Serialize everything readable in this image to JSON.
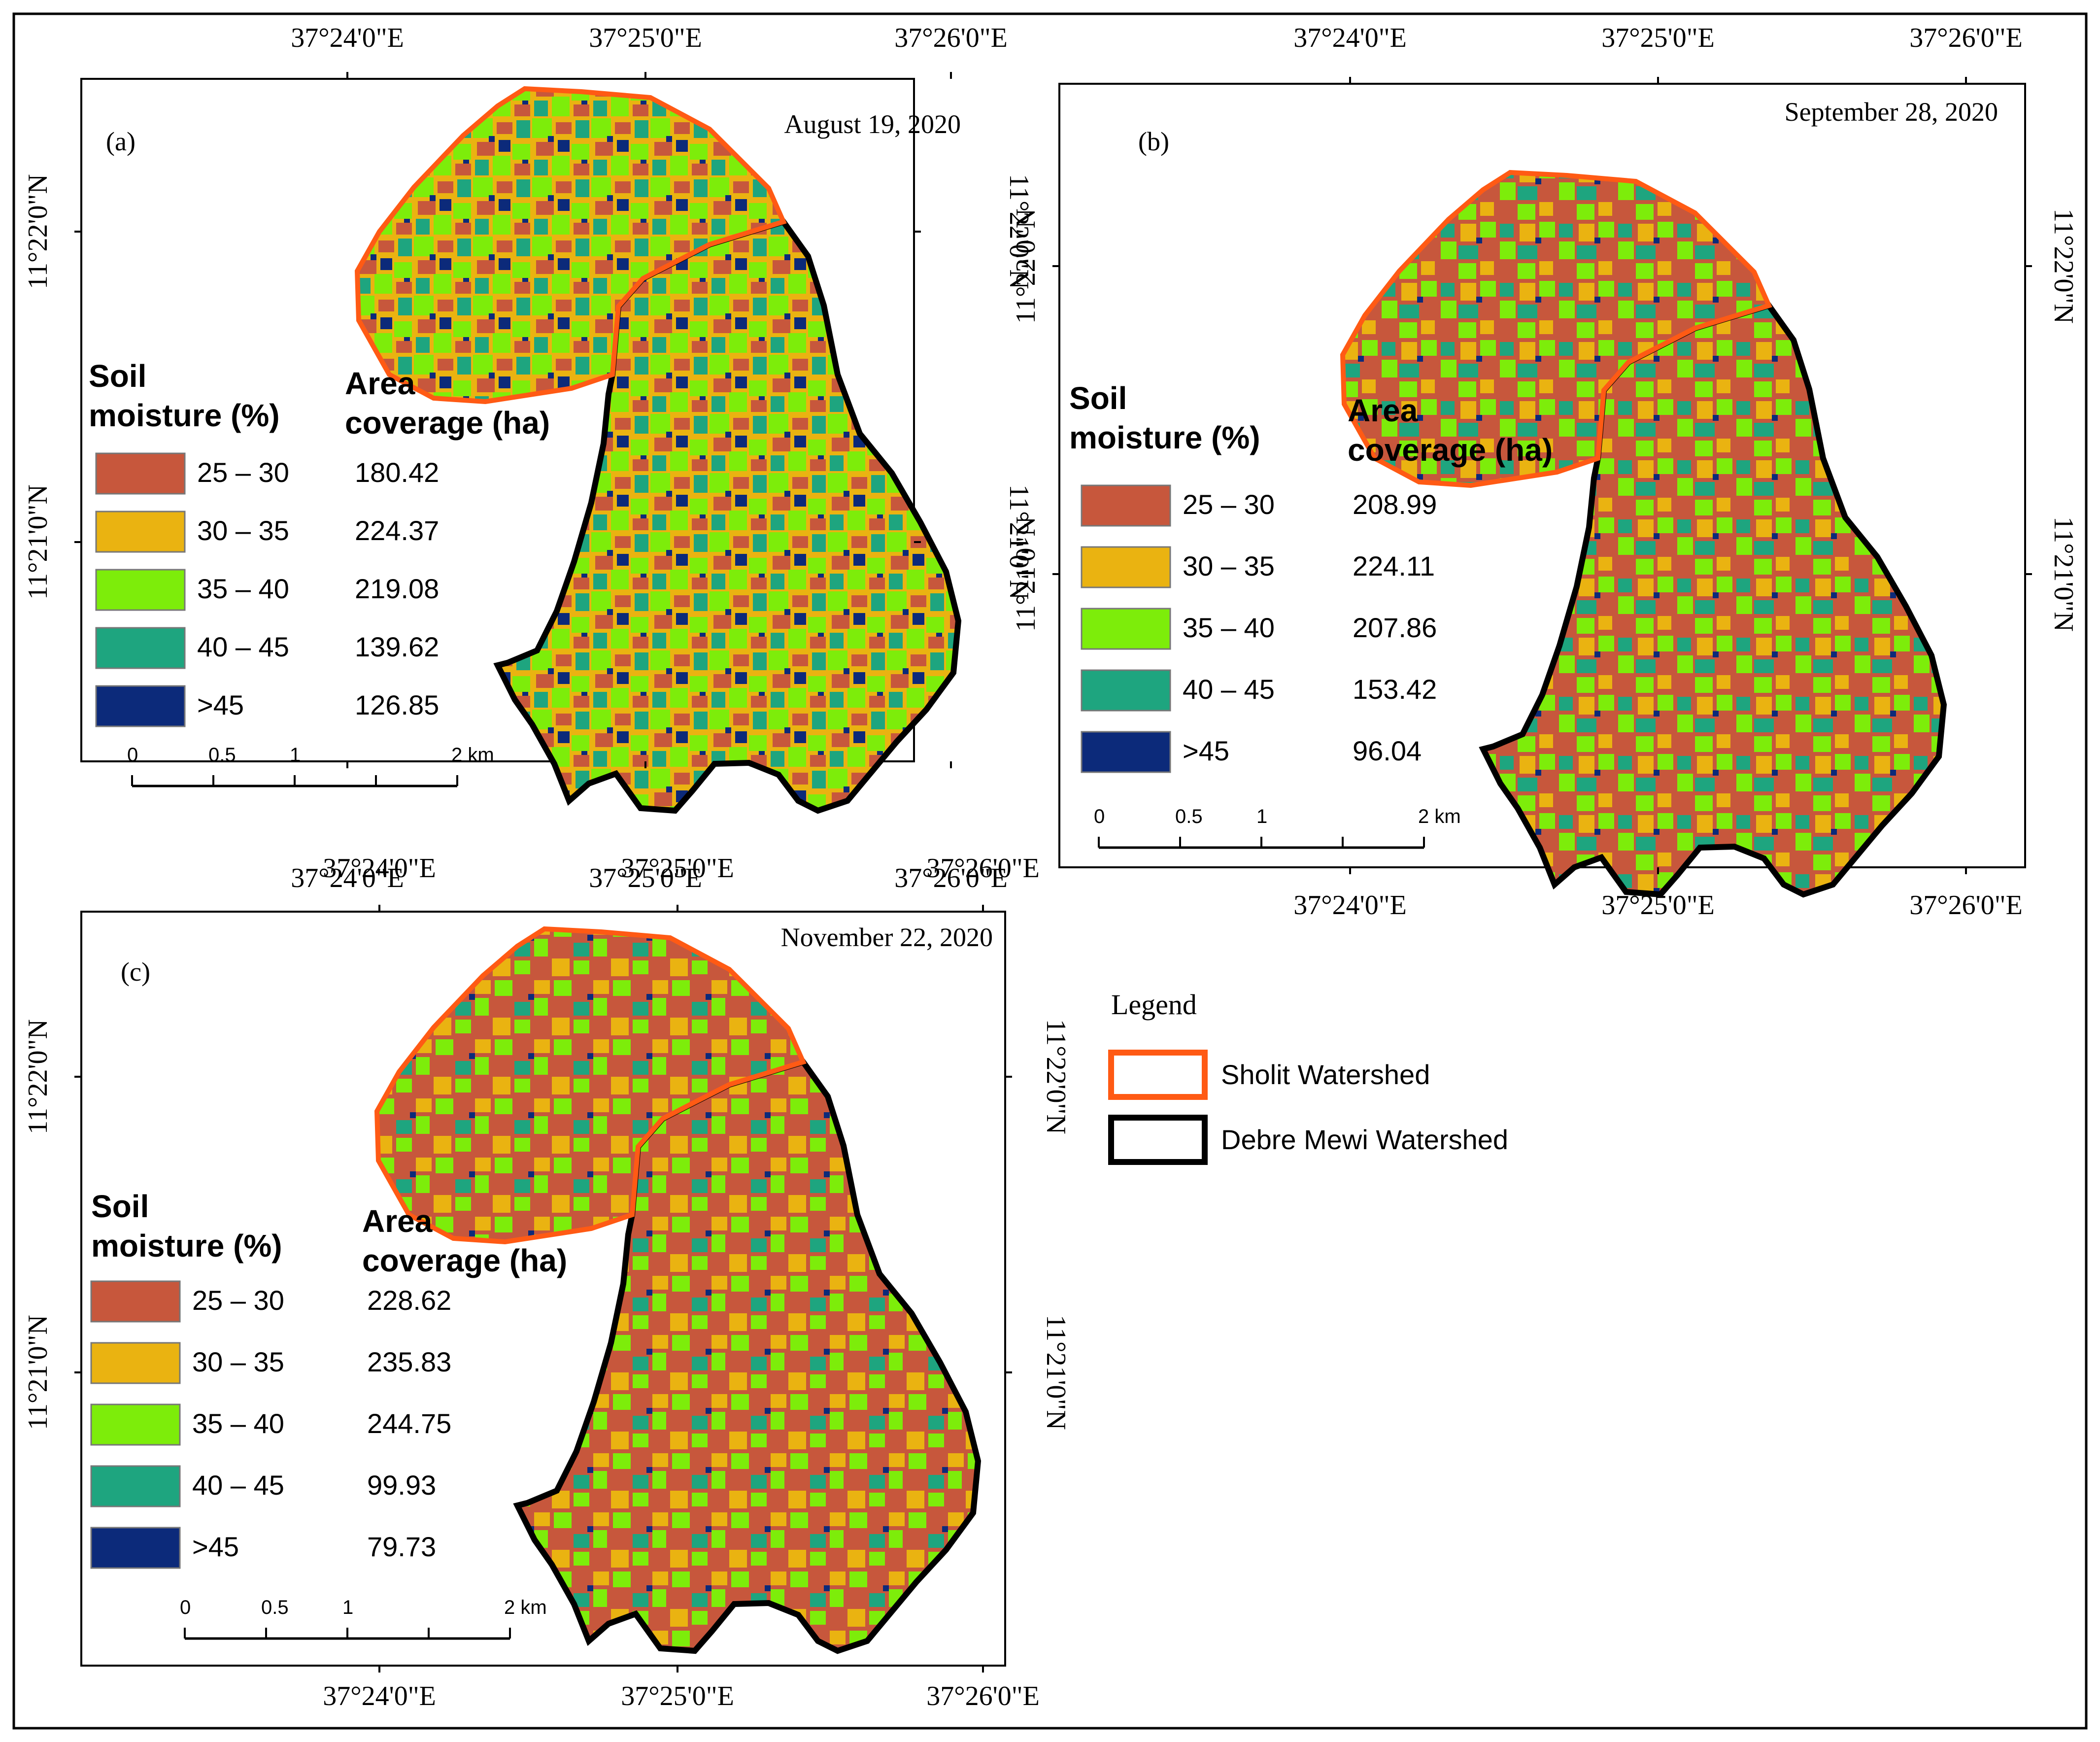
{
  "colors": {
    "class_colors": [
      "#c7573c",
      "#eab311",
      "#7ded0a",
      "#1ea57f",
      "#0c2a7a"
    ],
    "sholit_outline": "#ff5a14",
    "debre_mewi_outline": "#000000"
  },
  "panels": [
    {
      "label": "(a)",
      "date": "August 19, 2020",
      "lon_labels": [
        "37°24'0\"E",
        "37°25'0\"E",
        "37°26'0\"E"
      ],
      "lat_labels": [
        "11°22'0\"N",
        "11°21'0\"N"
      ],
      "legend": {
        "title_line1": "Soil",
        "title_line2": "moisture (%)",
        "area_line1": "Area",
        "area_line2": "coverage (ha)",
        "classes": [
          {
            "label": "25 – 30",
            "value": "180.42"
          },
          {
            "label": "30 – 35",
            "value": "224.37"
          },
          {
            "label": "35 – 40",
            "value": "219.08"
          },
          {
            "label": "40 – 45",
            "value": "139.62"
          },
          {
            "label": ">45",
            "value": "126.85"
          }
        ]
      },
      "scale": {
        "ticks": [
          "0",
          "0.5",
          "1",
          "2 km"
        ]
      }
    },
    {
      "label": "(b)",
      "date": "September 28, 2020",
      "lon_labels": [
        "37°24'0\"E",
        "37°25'0\"E",
        "37°26'0\"E"
      ],
      "lat_labels": [
        "11°22'0\"N",
        "11°21'0\"N"
      ],
      "legend": {
        "title_line1": "Soil",
        "title_line2": "moisture (%)",
        "area_line1": "Area",
        "area_line2": "coverage (ha)",
        "classes": [
          {
            "label": "25 – 30",
            "value": "208.99"
          },
          {
            "label": "30 – 35",
            "value": "224.11"
          },
          {
            "label": "35 – 40",
            "value": "207.86"
          },
          {
            "label": "40 – 45",
            "value": "153.42"
          },
          {
            "label": ">45",
            "value": "96.04"
          }
        ]
      },
      "scale": {
        "ticks": [
          "0",
          "0.5",
          "1",
          "2 km"
        ]
      }
    },
    {
      "label": "(c)",
      "date": "November 22, 2020",
      "lon_labels": [
        "37°24'0\"E",
        "37°25'0\"E",
        "37°26'0\"E"
      ],
      "lat_labels": [
        "11°22'0\"N",
        "11°21'0\"N"
      ],
      "legend": {
        "title_line1": "Soil",
        "title_line2": "moisture (%)",
        "area_line1": "Area",
        "area_line2": "coverage (ha)",
        "classes": [
          {
            "label": "25 – 30",
            "value": "228.62"
          },
          {
            "label": "30 – 35",
            "value": "235.83"
          },
          {
            "label": "35 – 40",
            "value": "244.75"
          },
          {
            "label": "40 – 45",
            "value": "99.93"
          },
          {
            "label": ">45",
            "value": "79.73"
          }
        ]
      },
      "scale": {
        "ticks": [
          "0",
          "0.5",
          "1",
          "2 km"
        ]
      }
    }
  ],
  "main_legend": {
    "title": "Legend",
    "items": [
      {
        "label": "Sholit Watershed"
      },
      {
        "label": "Debre Mewi Watershed"
      }
    ]
  }
}
